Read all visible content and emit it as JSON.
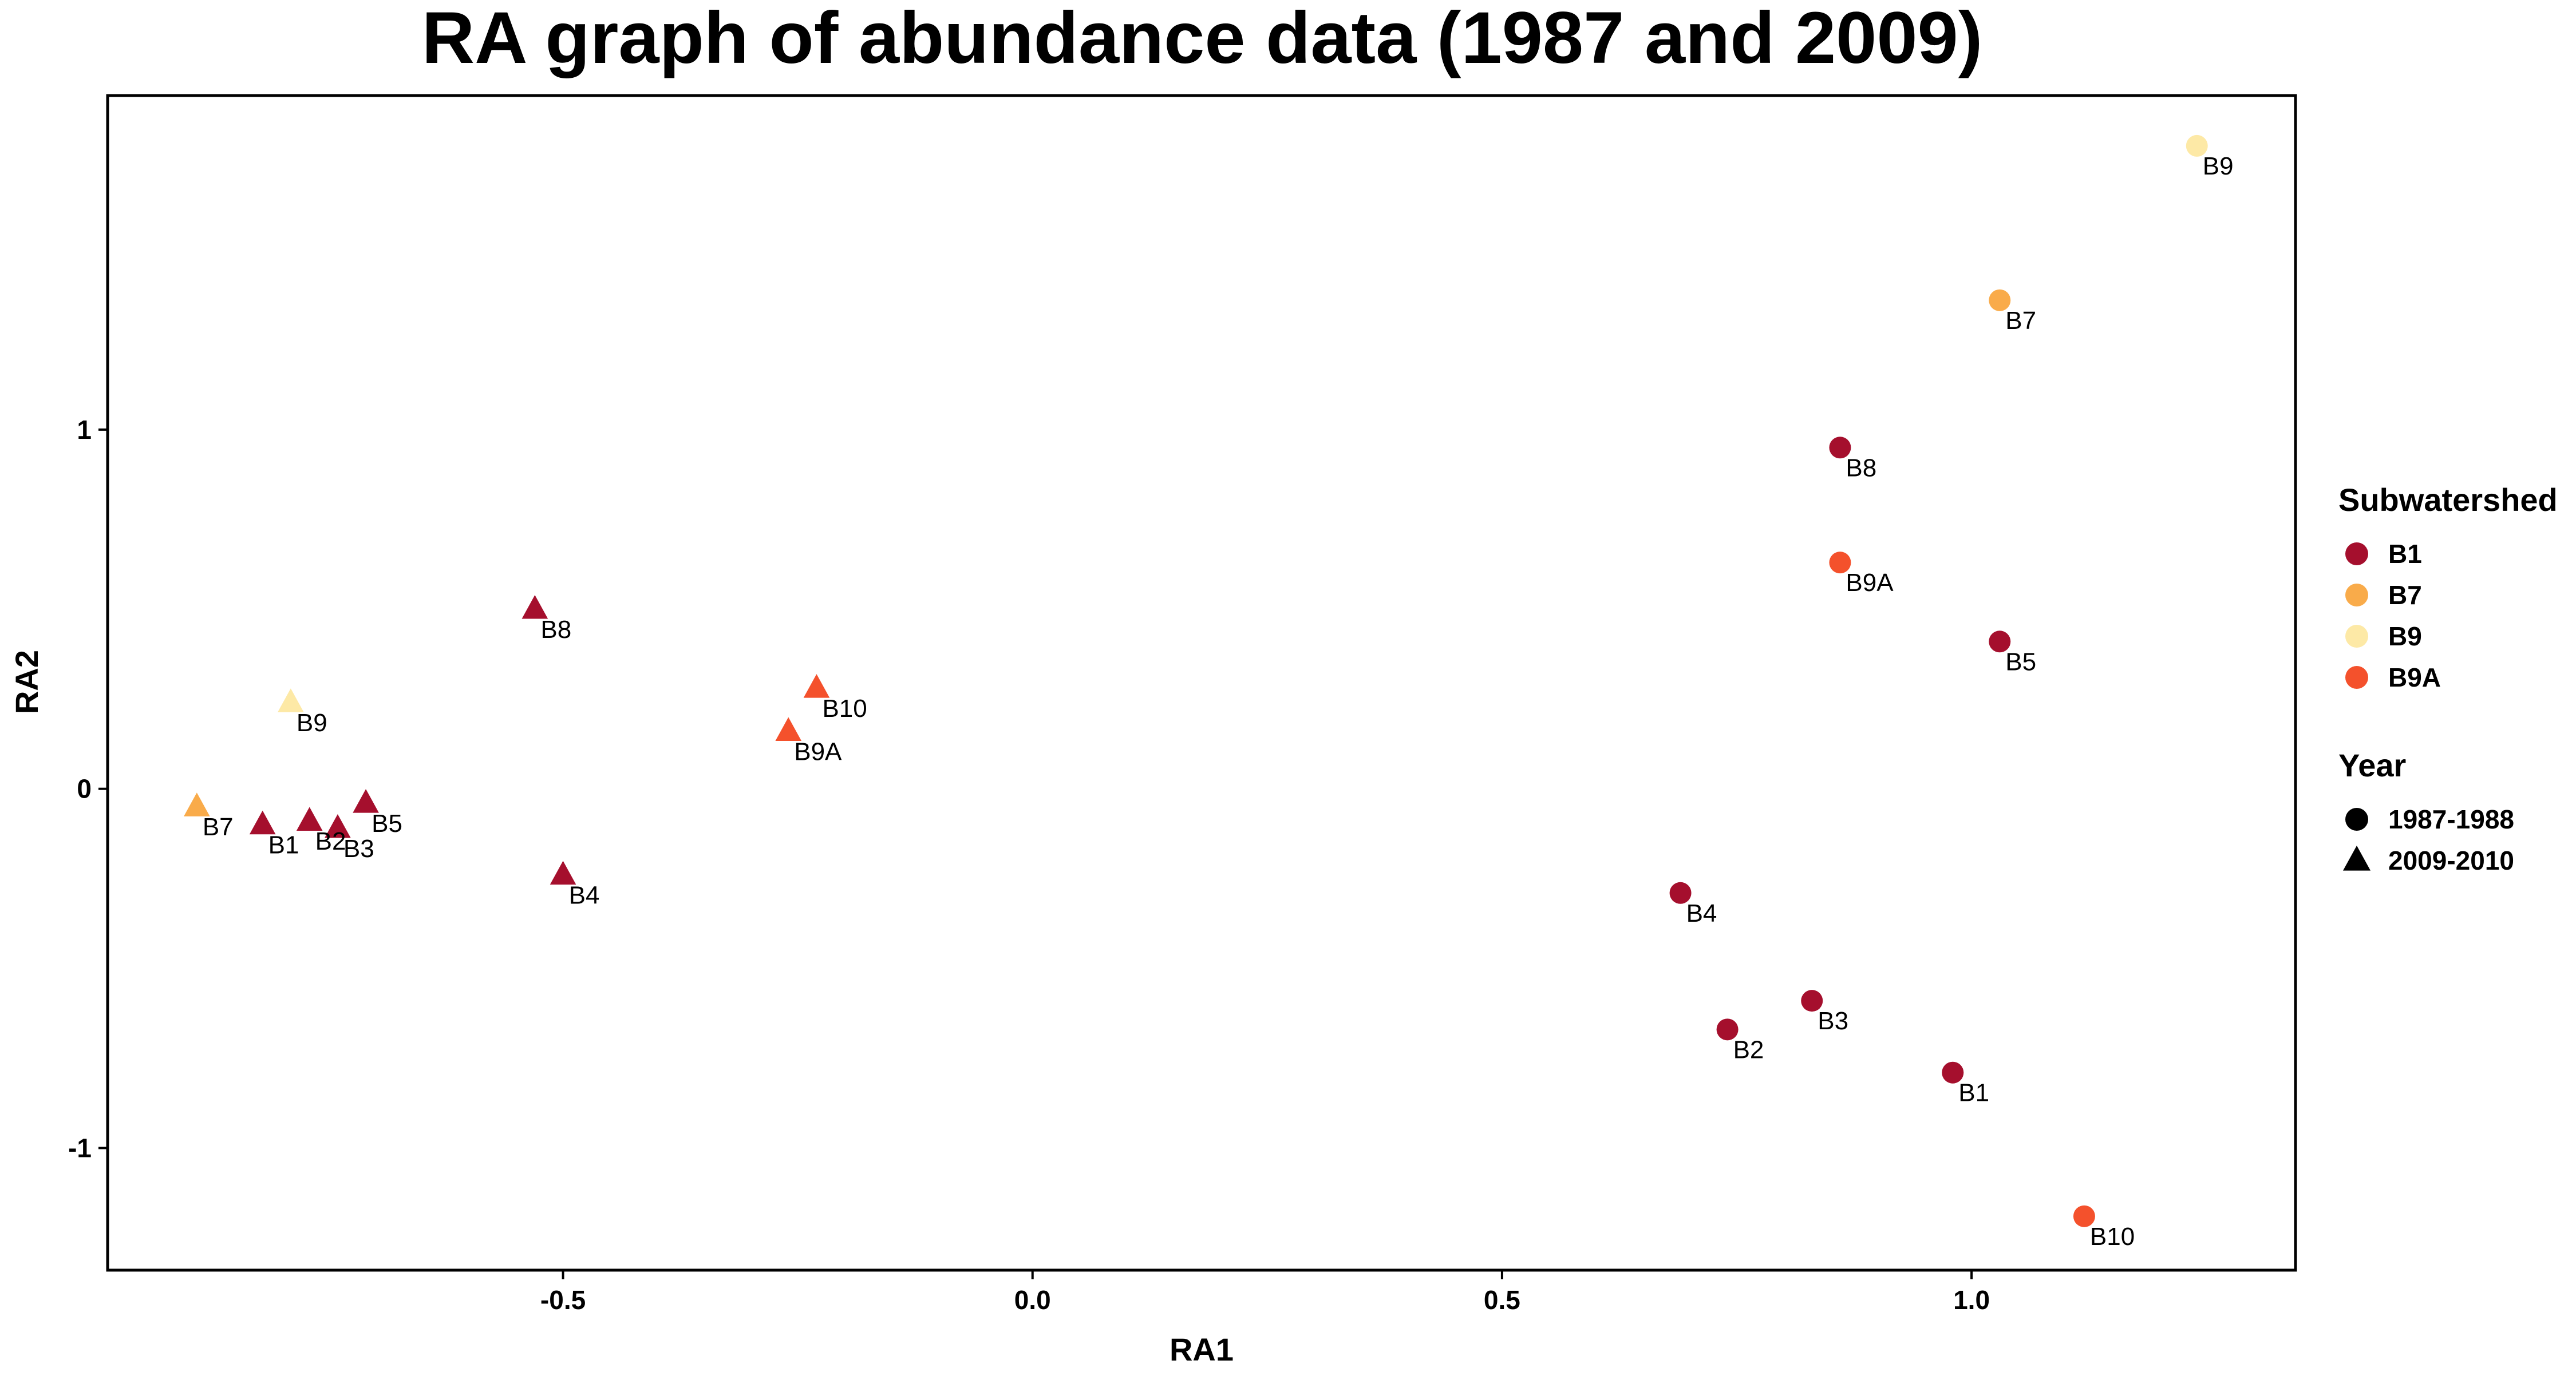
{
  "chart_data": {
    "type": "scatter",
    "title": "RA graph of abundance data (1987 and 2009)",
    "xlabel": "RA1",
    "ylabel": "RA2",
    "xlim": [
      -0.985,
      1.345
    ],
    "ylim": [
      -1.34,
      1.93
    ],
    "x_ticks": [
      -0.5,
      0.0,
      0.5,
      1.0
    ],
    "x_tick_labels": [
      "-0.5",
      "0.0",
      "0.5",
      "1.0"
    ],
    "y_ticks": [
      -1,
      0,
      1
    ],
    "y_tick_labels": [
      "-1",
      "0",
      "1"
    ],
    "grid": false,
    "legend_placement": "right",
    "color_legend": {
      "title": "Subwatershed",
      "entries": [
        {
          "label": "B1",
          "color": "#a50f2d"
        },
        {
          "label": "B7",
          "color": "#f9ab4a"
        },
        {
          "label": "B9",
          "color": "#fde9a6"
        },
        {
          "label": "B9A",
          "color": "#f4512c"
        }
      ]
    },
    "shape_legend": {
      "title": "Year",
      "entries": [
        {
          "label": "1987-1988",
          "shape": "circle"
        },
        {
          "label": "2009-2010",
          "shape": "triangle"
        }
      ]
    },
    "points": [
      {
        "x": 1.24,
        "y": 1.79,
        "label": "B9",
        "color": "#fde9a6",
        "shape": "circle"
      },
      {
        "x": 1.03,
        "y": 1.36,
        "label": "B7",
        "color": "#f9ab4a",
        "shape": "circle"
      },
      {
        "x": 0.86,
        "y": 0.95,
        "label": "B8",
        "color": "#a50f2d",
        "shape": "circle"
      },
      {
        "x": 0.86,
        "y": 0.63,
        "label": "B9A",
        "color": "#f4512c",
        "shape": "circle"
      },
      {
        "x": 1.03,
        "y": 0.41,
        "label": "B5",
        "color": "#a50f2d",
        "shape": "circle"
      },
      {
        "x": 0.69,
        "y": -0.29,
        "label": "B4",
        "color": "#a50f2d",
        "shape": "circle"
      },
      {
        "x": 0.83,
        "y": -0.59,
        "label": "B3",
        "color": "#a50f2d",
        "shape": "circle"
      },
      {
        "x": 0.74,
        "y": -0.67,
        "label": "B2",
        "color": "#a50f2d",
        "shape": "circle"
      },
      {
        "x": 0.98,
        "y": -0.79,
        "label": "B1",
        "color": "#a50f2d",
        "shape": "circle"
      },
      {
        "x": 1.12,
        "y": -1.19,
        "label": "B10",
        "color": "#f4512c",
        "shape": "circle"
      },
      {
        "x": -0.53,
        "y": 0.5,
        "label": "B8",
        "color": "#a50f2d",
        "shape": "triangle"
      },
      {
        "x": -0.79,
        "y": 0.24,
        "label": "B9",
        "color": "#fde9a6",
        "shape": "triangle"
      },
      {
        "x": -0.23,
        "y": 0.28,
        "label": "B10",
        "color": "#f4512c",
        "shape": "triangle"
      },
      {
        "x": -0.26,
        "y": 0.16,
        "label": "B9A",
        "color": "#f4512c",
        "shape": "triangle"
      },
      {
        "x": -0.89,
        "y": -0.05,
        "label": "B7",
        "color": "#f9ab4a",
        "shape": "triangle"
      },
      {
        "x": -0.82,
        "y": -0.1,
        "label": "B1",
        "color": "#a50f2d",
        "shape": "triangle"
      },
      {
        "x": -0.77,
        "y": -0.09,
        "label": "B2",
        "color": "#a50f2d",
        "shape": "triangle"
      },
      {
        "x": -0.74,
        "y": -0.11,
        "label": "B3",
        "color": "#a50f2d",
        "shape": "triangle"
      },
      {
        "x": -0.71,
        "y": -0.04,
        "label": "B5",
        "color": "#a50f2d",
        "shape": "triangle"
      },
      {
        "x": -0.5,
        "y": -0.24,
        "label": "B4",
        "color": "#a50f2d",
        "shape": "triangle"
      }
    ]
  }
}
